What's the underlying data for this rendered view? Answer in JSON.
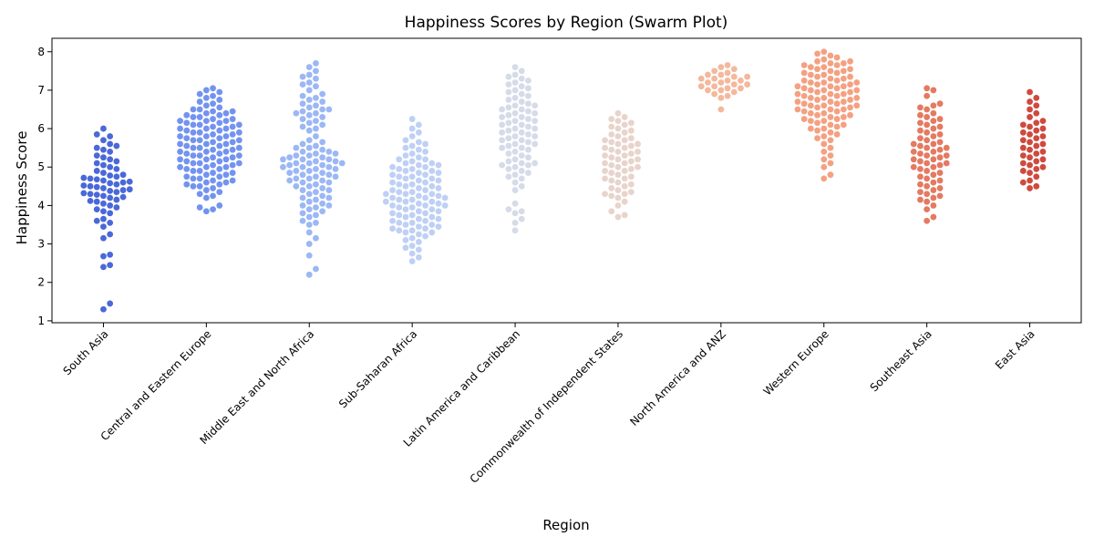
{
  "chart_data": {
    "type": "scatter",
    "subtype": "swarm",
    "title": "Happiness Scores by Region (Swarm Plot)",
    "xlabel": "Region",
    "ylabel": "Happiness Score",
    "ylim": [
      0.95,
      8.35
    ],
    "yticks": [
      1,
      2,
      3,
      4,
      5,
      6,
      7,
      8
    ],
    "grid": false,
    "legend": "none",
    "categories": [
      "South Asia",
      "Central and Eastern Europe",
      "Middle East and North Africa",
      "Sub-Saharan Africa",
      "Latin America and Caribbean",
      "Commonwealth of Independent States",
      "North America and ANZ",
      "Western Europe",
      "Southeast Asia",
      "East Asia"
    ],
    "series": [
      {
        "color": "#4a68d8",
        "values": [
          1.3,
          1.45,
          2.4,
          2.45,
          2.68,
          2.72,
          3.15,
          3.25,
          3.45,
          3.55,
          3.6,
          3.65,
          3.8,
          3.85,
          3.9,
          3.95,
          4.0,
          4.05,
          4.1,
          4.12,
          4.15,
          4.2,
          4.22,
          4.25,
          4.28,
          4.3,
          4.32,
          4.35,
          4.38,
          4.4,
          4.42,
          4.45,
          4.48,
          4.5,
          4.52,
          4.55,
          4.58,
          4.6,
          4.62,
          4.65,
          4.68,
          4.7,
          4.72,
          4.75,
          4.78,
          4.8,
          4.85,
          4.9,
          4.95,
          5.0,
          5.05,
          5.1,
          5.15,
          5.2,
          5.25,
          5.3,
          5.4,
          5.45,
          5.5,
          5.55,
          5.6,
          5.7,
          5.8,
          5.85,
          6.0
        ]
      },
      {
        "color": "#7393f0",
        "values": [
          3.85,
          3.9,
          3.95,
          4.0,
          4.2,
          4.25,
          4.3,
          4.35,
          4.4,
          4.45,
          4.5,
          4.5,
          4.55,
          4.55,
          4.6,
          4.6,
          4.65,
          4.65,
          4.7,
          4.7,
          4.75,
          4.75,
          4.8,
          4.8,
          4.85,
          4.85,
          4.9,
          4.9,
          4.95,
          4.95,
          5.0,
          5.0,
          5.0,
          5.05,
          5.05,
          5.1,
          5.1,
          5.1,
          5.15,
          5.15,
          5.2,
          5.2,
          5.2,
          5.25,
          5.25,
          5.3,
          5.3,
          5.3,
          5.35,
          5.35,
          5.4,
          5.4,
          5.4,
          5.45,
          5.45,
          5.5,
          5.5,
          5.5,
          5.55,
          5.55,
          5.6,
          5.6,
          5.6,
          5.65,
          5.65,
          5.7,
          5.7,
          5.7,
          5.75,
          5.75,
          5.8,
          5.8,
          5.8,
          5.85,
          5.85,
          5.9,
          5.9,
          5.9,
          5.95,
          5.95,
          6.0,
          6.0,
          6.0,
          6.05,
          6.05,
          6.1,
          6.1,
          6.1,
          6.15,
          6.15,
          6.2,
          6.2,
          6.2,
          6.25,
          6.25,
          6.3,
          6.3,
          6.35,
          6.35,
          6.4,
          6.4,
          6.45,
          6.45,
          6.5,
          6.5,
          6.55,
          6.6,
          6.65,
          6.7,
          6.75,
          6.8,
          6.85,
          6.9,
          6.95,
          7.0,
          7.05
        ]
      },
      {
        "color": "#9bb7f5",
        "values": [
          2.2,
          2.35,
          2.7,
          3.0,
          3.15,
          3.3,
          3.5,
          3.55,
          3.6,
          3.7,
          3.75,
          3.8,
          3.85,
          3.9,
          3.95,
          4.0,
          4.0,
          4.05,
          4.1,
          4.15,
          4.2,
          4.2,
          4.25,
          4.3,
          4.35,
          4.4,
          4.4,
          4.45,
          4.5,
          4.5,
          4.55,
          4.6,
          4.6,
          4.65,
          4.65,
          4.7,
          4.7,
          4.75,
          4.75,
          4.8,
          4.8,
          4.85,
          4.85,
          4.9,
          4.9,
          4.95,
          4.95,
          5.0,
          5.0,
          5.0,
          5.05,
          5.05,
          5.1,
          5.1,
          5.1,
          5.15,
          5.15,
          5.2,
          5.2,
          5.2,
          5.25,
          5.25,
          5.3,
          5.3,
          5.35,
          5.35,
          5.4,
          5.4,
          5.45,
          5.5,
          5.5,
          5.55,
          5.6,
          5.65,
          5.7,
          5.8,
          5.95,
          6.0,
          6.05,
          6.1,
          6.15,
          6.2,
          6.25,
          6.3,
          6.35,
          6.4,
          6.4,
          6.45,
          6.5,
          6.5,
          6.55,
          6.6,
          6.65,
          6.7,
          6.75,
          6.8,
          6.85,
          6.9,
          7.0,
          7.1,
          7.15,
          7.2,
          7.3,
          7.35,
          7.4,
          7.5,
          7.6,
          7.7
        ]
      },
      {
        "color": "#bfd0f5",
        "values": [
          2.55,
          2.65,
          2.75,
          2.85,
          2.9,
          2.95,
          3.05,
          3.1,
          3.15,
          3.2,
          3.25,
          3.3,
          3.3,
          3.35,
          3.35,
          3.4,
          3.4,
          3.45,
          3.45,
          3.5,
          3.5,
          3.55,
          3.55,
          3.6,
          3.6,
          3.65,
          3.65,
          3.7,
          3.7,
          3.75,
          3.75,
          3.8,
          3.8,
          3.85,
          3.85,
          3.9,
          3.9,
          3.95,
          3.95,
          4.0,
          4.0,
          4.0,
          4.05,
          4.05,
          4.1,
          4.1,
          4.1,
          4.15,
          4.15,
          4.2,
          4.2,
          4.2,
          4.25,
          4.25,
          4.3,
          4.3,
          4.3,
          4.35,
          4.35,
          4.4,
          4.4,
          4.45,
          4.45,
          4.5,
          4.5,
          4.55,
          4.55,
          4.6,
          4.6,
          4.65,
          4.65,
          4.7,
          4.7,
          4.75,
          4.75,
          4.8,
          4.8,
          4.85,
          4.85,
          4.9,
          4.9,
          4.95,
          4.95,
          5.0,
          5.0,
          5.05,
          5.05,
          5.1,
          5.1,
          5.15,
          5.2,
          5.2,
          5.25,
          5.3,
          5.35,
          5.4,
          5.45,
          5.5,
          5.55,
          5.6,
          5.65,
          5.7,
          5.8,
          5.9,
          6.0,
          6.1,
          6.25
        ]
      },
      {
        "color": "#d5dbe8",
        "values": [
          3.35,
          3.55,
          3.65,
          3.8,
          3.85,
          3.9,
          4.05,
          4.4,
          4.5,
          4.6,
          4.7,
          4.75,
          4.8,
          4.85,
          4.9,
          4.95,
          5.0,
          5.05,
          5.05,
          5.1,
          5.1,
          5.15,
          5.2,
          5.25,
          5.3,
          5.35,
          5.4,
          5.45,
          5.5,
          5.5,
          5.55,
          5.6,
          5.6,
          5.65,
          5.7,
          5.7,
          5.75,
          5.8,
          5.8,
          5.85,
          5.9,
          5.9,
          5.95,
          6.0,
          6.0,
          6.05,
          6.1,
          6.1,
          6.15,
          6.2,
          6.2,
          6.25,
          6.3,
          6.3,
          6.35,
          6.4,
          6.4,
          6.45,
          6.5,
          6.5,
          6.55,
          6.6,
          6.6,
          6.65,
          6.7,
          6.75,
          6.8,
          6.85,
          6.9,
          6.95,
          7.0,
          7.05,
          7.1,
          7.15,
          7.2,
          7.25,
          7.3,
          7.35,
          7.4,
          7.5,
          7.6
        ]
      },
      {
        "color": "#e8d4cb",
        "values": [
          3.7,
          3.75,
          3.85,
          4.0,
          4.1,
          4.2,
          4.25,
          4.3,
          4.3,
          4.35,
          4.4,
          4.45,
          4.5,
          4.55,
          4.6,
          4.65,
          4.7,
          4.7,
          4.75,
          4.8,
          4.85,
          4.9,
          4.9,
          4.95,
          5.0,
          5.0,
          5.05,
          5.1,
          5.1,
          5.15,
          5.2,
          5.2,
          5.25,
          5.3,
          5.3,
          5.35,
          5.4,
          5.4,
          5.45,
          5.5,
          5.5,
          5.55,
          5.6,
          5.6,
          5.65,
          5.7,
          5.7,
          5.75,
          5.8,
          5.85,
          5.9,
          5.95,
          6.0,
          6.05,
          6.1,
          6.15,
          6.2,
          6.25,
          6.3,
          6.4
        ]
      },
      {
        "color": "#f4b89c",
        "values": [
          6.5,
          6.8,
          6.85,
          6.9,
          6.95,
          7.0,
          7.0,
          7.05,
          7.05,
          7.1,
          7.1,
          7.15,
          7.15,
          7.2,
          7.2,
          7.25,
          7.25,
          7.3,
          7.3,
          7.35,
          7.35,
          7.4,
          7.4,
          7.45,
          7.5,
          7.55,
          7.6,
          7.65
        ]
      },
      {
        "color": "#f4a182",
        "values": [
          4.7,
          4.8,
          5.0,
          5.1,
          5.2,
          5.3,
          5.4,
          5.5,
          5.6,
          5.7,
          5.75,
          5.8,
          5.85,
          5.9,
          5.95,
          6.0,
          6.0,
          6.05,
          6.1,
          6.1,
          6.15,
          6.2,
          6.2,
          6.25,
          6.25,
          6.3,
          6.3,
          6.35,
          6.35,
          6.4,
          6.4,
          6.45,
          6.45,
          6.5,
          6.5,
          6.5,
          6.55,
          6.55,
          6.6,
          6.6,
          6.6,
          6.65,
          6.65,
          6.7,
          6.7,
          6.7,
          6.75,
          6.75,
          6.8,
          6.8,
          6.8,
          6.85,
          6.85,
          6.9,
          6.9,
          6.9,
          6.95,
          6.95,
          7.0,
          7.0,
          7.0,
          7.05,
          7.05,
          7.1,
          7.1,
          7.1,
          7.15,
          7.15,
          7.2,
          7.2,
          7.2,
          7.25,
          7.25,
          7.3,
          7.3,
          7.35,
          7.35,
          7.4,
          7.4,
          7.45,
          7.45,
          7.5,
          7.5,
          7.55,
          7.55,
          7.6,
          7.6,
          7.65,
          7.65,
          7.7,
          7.7,
          7.75,
          7.75,
          7.8,
          7.85,
          7.9,
          7.95,
          8.0
        ]
      },
      {
        "color": "#e47a61",
        "values": [
          3.6,
          3.7,
          3.9,
          4.0,
          4.1,
          4.15,
          4.2,
          4.25,
          4.3,
          4.35,
          4.4,
          4.45,
          4.5,
          4.55,
          4.6,
          4.65,
          4.7,
          4.75,
          4.8,
          4.85,
          4.9,
          4.95,
          5.0,
          5.0,
          5.05,
          5.1,
          5.1,
          5.15,
          5.2,
          5.2,
          5.25,
          5.3,
          5.3,
          5.35,
          5.4,
          5.4,
          5.45,
          5.5,
          5.5,
          5.55,
          5.6,
          5.6,
          5.65,
          5.7,
          5.75,
          5.8,
          5.85,
          5.9,
          5.95,
          6.0,
          6.05,
          6.1,
          6.15,
          6.2,
          6.25,
          6.3,
          6.35,
          6.4,
          6.5,
          6.55,
          6.6,
          6.65,
          6.85,
          7.0,
          7.05
        ]
      },
      {
        "color": "#cf4a3e",
        "values": [
          4.45,
          4.5,
          4.6,
          4.65,
          4.75,
          4.85,
          4.9,
          4.95,
          5.0,
          5.05,
          5.1,
          5.15,
          5.2,
          5.25,
          5.3,
          5.35,
          5.4,
          5.45,
          5.5,
          5.55,
          5.6,
          5.65,
          5.7,
          5.75,
          5.8,
          5.85,
          5.9,
          5.95,
          6.0,
          6.05,
          6.1,
          6.15,
          6.2,
          6.3,
          6.4,
          6.5,
          6.6,
          6.7,
          6.8,
          6.95
        ]
      }
    ]
  }
}
